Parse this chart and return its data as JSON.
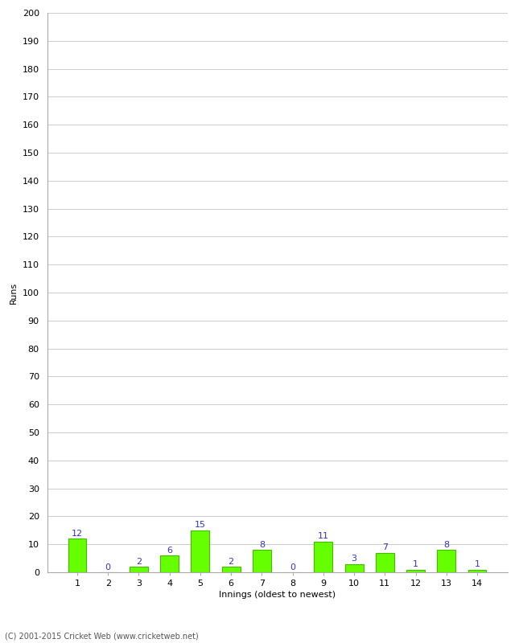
{
  "xlabel": "Innings (oldest to newest)",
  "ylabel": "Runs",
  "categories": [
    "1",
    "2",
    "3",
    "4",
    "5",
    "6",
    "7",
    "8",
    "9",
    "10",
    "11",
    "12",
    "13",
    "14"
  ],
  "values": [
    12,
    0,
    2,
    6,
    15,
    2,
    8,
    0,
    11,
    3,
    7,
    1,
    8,
    1
  ],
  "bar_color": "#66ff00",
  "bar_edge_color": "#44bb00",
  "label_color": "#3333cc",
  "ylim": [
    0,
    200
  ],
  "ytick_step": 10,
  "background_color": "#ffffff",
  "grid_color": "#cccccc",
  "footer": "(C) 2001-2015 Cricket Web (www.cricketweb.net)",
  "spine_color": "#aaaaaa"
}
